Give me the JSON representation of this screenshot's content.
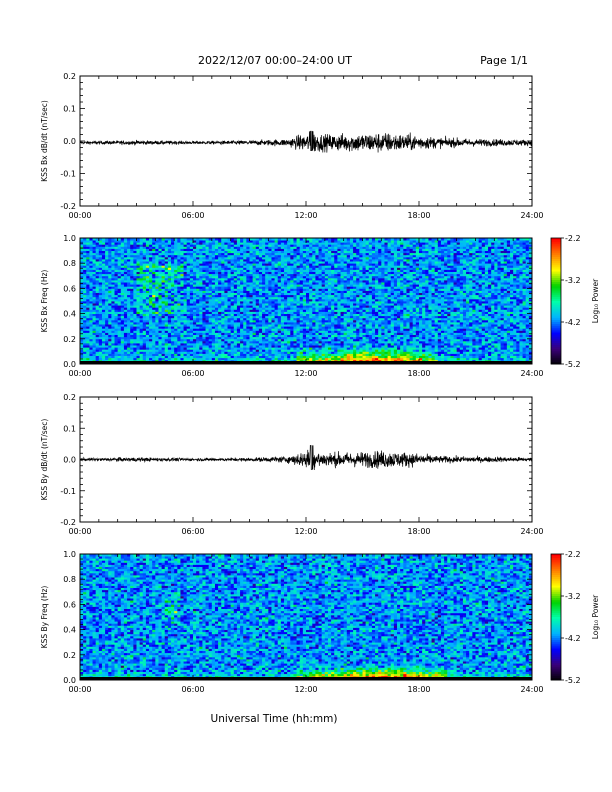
{
  "header": {
    "title": "2022/12/07  00:00–24:00 UT",
    "page": "Page 1/1"
  },
  "footer": {
    "xlabel": "Universal Time (hh:mm)"
  },
  "colors": {
    "trace": "#000000",
    "frame": "#000000",
    "colormap": [
      "#000000",
      "#3a0078",
      "#0000ff",
      "#00b4ff",
      "#00ffaa",
      "#00d200",
      "#ffff00",
      "#ff8000",
      "#ff0000"
    ]
  },
  "chart_data": [
    {
      "id": "bx-waveform",
      "type": "line",
      "ylabel": "KSS Bx dB/dt (nT/sec)",
      "xlim": [
        0,
        24
      ],
      "ylim": [
        -0.2,
        0.2
      ],
      "x_ticks": [
        "00:00",
        "06:00",
        "12:00",
        "18:00",
        "24:00"
      ],
      "y_ticks": [
        "0.2",
        "0.1",
        "0.0",
        "-0.1",
        "-0.2"
      ],
      "y_tick_values": [
        0.2,
        0.1,
        0.0,
        -0.1,
        -0.2
      ],
      "baseline": -0.005,
      "activity": [
        {
          "x": 0,
          "amp": 0.004
        },
        {
          "x": 3,
          "amp": 0.006
        },
        {
          "x": 6,
          "amp": 0.004
        },
        {
          "x": 9,
          "amp": 0.006
        },
        {
          "x": 11,
          "amp": 0.01
        },
        {
          "x": 12.3,
          "amp": 0.03
        },
        {
          "x": 13,
          "amp": 0.022
        },
        {
          "x": 14.5,
          "amp": 0.025
        },
        {
          "x": 16,
          "amp": 0.028
        },
        {
          "x": 17.5,
          "amp": 0.022
        },
        {
          "x": 19,
          "amp": 0.014
        },
        {
          "x": 21,
          "amp": 0.01
        },
        {
          "x": 24,
          "amp": 0.008
        }
      ],
      "peak": {
        "x": 12.3,
        "y": 0.035
      }
    },
    {
      "id": "bx-spectrogram",
      "type": "heatmap",
      "ylabel": "KSS Bx Freq (Hz)",
      "xlim": [
        0,
        24
      ],
      "ylim": [
        0,
        1.0
      ],
      "x_ticks": [
        "00:00",
        "06:00",
        "12:00",
        "18:00",
        "24:00"
      ],
      "y_ticks": [
        "1.0",
        "0.8",
        "0.6",
        "0.4",
        "0.2",
        "0.0"
      ],
      "y_tick_values": [
        1.0,
        0.8,
        0.6,
        0.4,
        0.2,
        0.0
      ],
      "colorbar": {
        "label": "Log₁₀ Power",
        "range": [
          -5.2,
          -2.2
        ],
        "ticks": [
          "-2.2",
          "-3.2",
          "-4.2",
          "-5.2"
        ],
        "tick_values": [
          -2.2,
          -3.2,
          -4.2,
          -5.2
        ]
      },
      "features": {
        "lowfreq_enhancement": {
          "x_start": 11.5,
          "x_end": 19,
          "peak_x": 15.5,
          "freq_top": 0.15
        },
        "band_events": [
          {
            "x_start": 3.0,
            "x_end": 5.5,
            "freq_low": 0.4,
            "freq_high": 0.8
          }
        ]
      }
    },
    {
      "id": "by-waveform",
      "type": "line",
      "ylabel": "KSS By dB/dt (nT/sec)",
      "xlim": [
        0,
        24
      ],
      "ylim": [
        -0.2,
        0.2
      ],
      "x_ticks": [
        "00:00",
        "06:00",
        "12:00",
        "18:00",
        "24:00"
      ],
      "y_ticks": [
        "0.2",
        "0.1",
        "0.0",
        "-0.1",
        "-0.2"
      ],
      "y_tick_values": [
        0.2,
        0.1,
        0.0,
        -0.1,
        -0.2
      ],
      "baseline": 0.0,
      "activity": [
        {
          "x": 0,
          "amp": 0.004
        },
        {
          "x": 3,
          "amp": 0.006
        },
        {
          "x": 6,
          "amp": 0.004
        },
        {
          "x": 9,
          "amp": 0.005
        },
        {
          "x": 11,
          "amp": 0.009
        },
        {
          "x": 12.3,
          "amp": 0.03
        },
        {
          "x": 13,
          "amp": 0.02
        },
        {
          "x": 14.5,
          "amp": 0.02
        },
        {
          "x": 16,
          "amp": 0.025
        },
        {
          "x": 17.5,
          "amp": 0.02
        },
        {
          "x": 19,
          "amp": 0.01
        },
        {
          "x": 21,
          "amp": 0.008
        },
        {
          "x": 24,
          "amp": 0.006
        }
      ],
      "peak": {
        "x": 12.3,
        "y": 0.045
      }
    },
    {
      "id": "by-spectrogram",
      "type": "heatmap",
      "ylabel": "KSS By Freq (Hz)",
      "xlim": [
        0,
        24
      ],
      "ylim": [
        0,
        1.0
      ],
      "x_ticks": [
        "00:00",
        "06:00",
        "12:00",
        "18:00",
        "24:00"
      ],
      "y_ticks": [
        "1.0",
        "0.8",
        "0.6",
        "0.4",
        "0.2",
        "0.0"
      ],
      "y_tick_values": [
        1.0,
        0.8,
        0.6,
        0.4,
        0.2,
        0.0
      ],
      "colorbar": {
        "label": "Log₁₀ Power",
        "range": [
          -5.2,
          -2.2
        ],
        "ticks": [
          "-2.2",
          "-3.2",
          "-4.2",
          "-5.2"
        ],
        "tick_values": [
          -2.2,
          -3.2,
          -4.2,
          -5.2
        ]
      },
      "features": {
        "lowfreq_enhancement": {
          "x_start": 11.5,
          "x_end": 19.5,
          "peak_x": 16,
          "freq_top": 0.12
        },
        "band_events": [
          {
            "x_start": 4.5,
            "x_end": 5.3,
            "freq_low": 0.45,
            "freq_high": 0.7
          }
        ]
      }
    }
  ]
}
